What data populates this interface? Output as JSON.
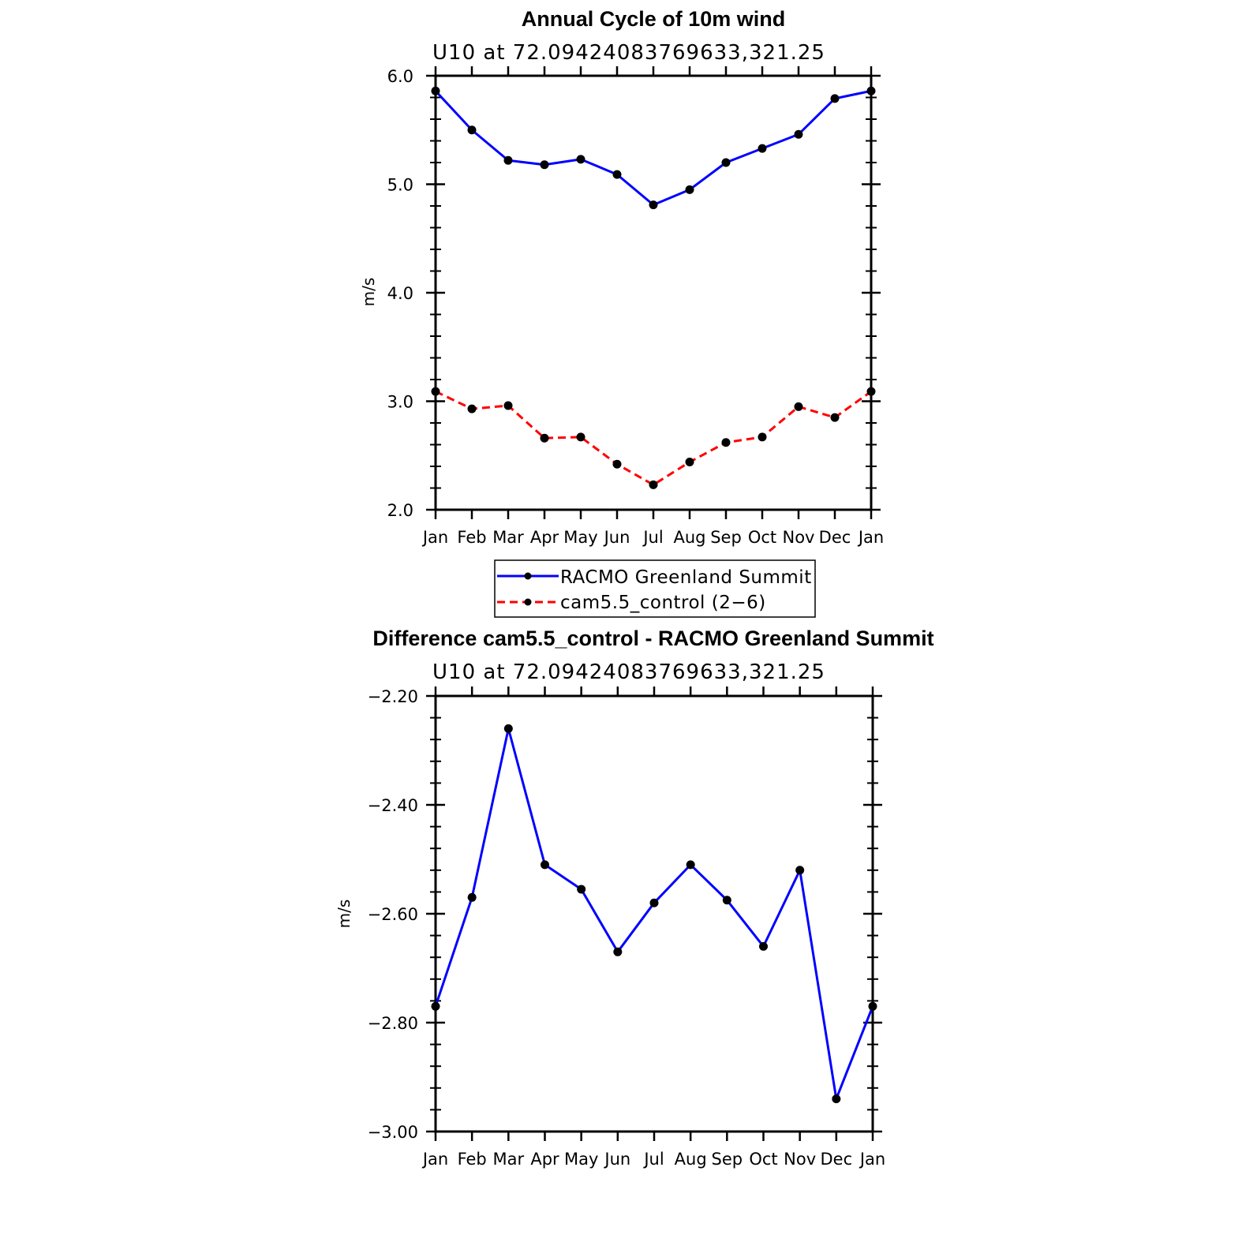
{
  "chart_data": [
    {
      "type": "line",
      "title": "Annual Cycle of 10m wind",
      "subtitle": "U10 at 72.09424083769633,321.25",
      "xlabel": "",
      "ylabel": "m/s",
      "categories": [
        "Jan",
        "Feb",
        "Mar",
        "Apr",
        "May",
        "Jun",
        "Jul",
        "Aug",
        "Sep",
        "Oct",
        "Nov",
        "Dec",
        "Jan"
      ],
      "ylim": [
        2.0,
        6.0
      ],
      "yticks": [
        2.0,
        3.0,
        4.0,
        5.0,
        6.0
      ],
      "ytick_labels": [
        "2.0",
        "3.0",
        "4.0",
        "5.0",
        "6.0"
      ],
      "series": [
        {
          "name": "RACMO Greenland Summit",
          "color": "#0000ff",
          "dash": "solid",
          "values": [
            5.86,
            5.5,
            5.22,
            5.18,
            5.23,
            5.09,
            4.81,
            4.95,
            5.2,
            5.33,
            5.46,
            5.79,
            5.86
          ]
        },
        {
          "name": "cam5.5_control (2−6)",
          "color": "#ff0000",
          "dash": "dashed",
          "values": [
            3.09,
            2.93,
            2.96,
            2.66,
            2.67,
            2.42,
            2.23,
            2.44,
            2.62,
            2.67,
            2.95,
            2.85,
            3.09
          ]
        }
      ],
      "legend": {
        "position": "bottom-center",
        "entries": [
          "RACMO Greenland Summit",
          "cam5.5_control (2−6)"
        ]
      }
    },
    {
      "type": "line",
      "title": "Difference cam5.5_control - RACMO Greenland Summit",
      "subtitle": "U10 at 72.09424083769633,321.25",
      "xlabel": "",
      "ylabel": "m/s",
      "categories": [
        "Jan",
        "Feb",
        "Mar",
        "Apr",
        "May",
        "Jun",
        "Jul",
        "Aug",
        "Sep",
        "Oct",
        "Nov",
        "Dec",
        "Jan"
      ],
      "ylim": [
        -3.0,
        -2.2
      ],
      "yticks": [
        -3.0,
        -2.8,
        -2.6,
        -2.4,
        -2.2
      ],
      "ytick_labels": [
        "−3.00",
        "−2.80",
        "−2.60",
        "−2.40",
        "−2.20"
      ],
      "series": [
        {
          "name": "Difference",
          "color": "#0000ff",
          "dash": "solid",
          "values": [
            -2.77,
            -2.57,
            -2.26,
            -2.51,
            -2.555,
            -2.67,
            -2.58,
            -2.51,
            -2.575,
            -2.66,
            -2.52,
            -2.94,
            -2.77
          ]
        }
      ]
    }
  ]
}
